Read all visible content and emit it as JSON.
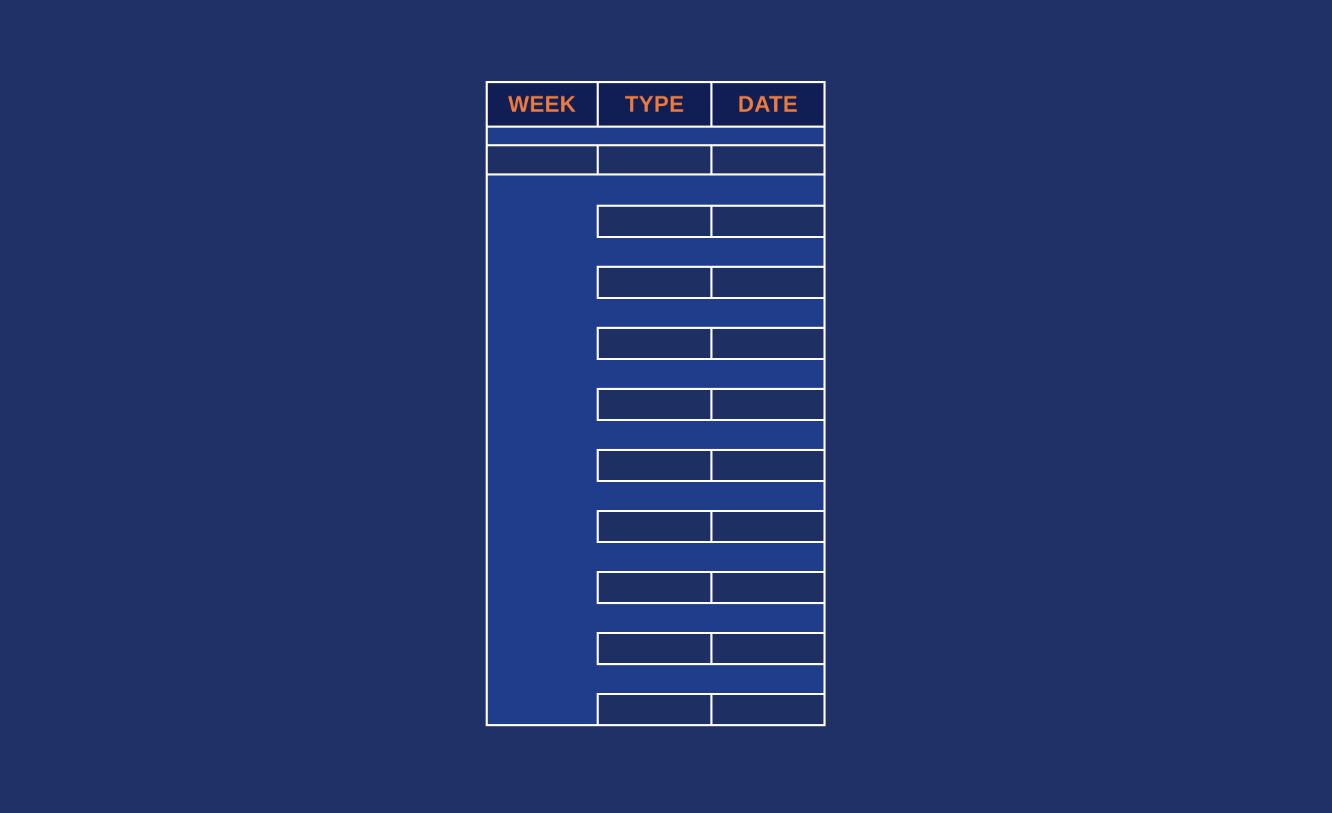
{
  "slide": {
    "background": "#1F3166"
  },
  "schedule_table": {
    "headers": [
      {
        "label": "WEEK"
      },
      {
        "label": "TYPE"
      },
      {
        "label": "DATE"
      }
    ],
    "colors": {
      "header_bg": "#111E55",
      "header_text": "#ED7B3C",
      "accent": "#203D8B",
      "cell_dark": "#1E2F63",
      "border": "#FFFFFF"
    },
    "spacer_row": {
      "value": ""
    },
    "subheader_row": {
      "week": "",
      "type": "",
      "date": ""
    },
    "week_column": {
      "value": ""
    },
    "rows": [
      {
        "type": "",
        "date": ""
      },
      {
        "type": "",
        "date": ""
      },
      {
        "type": "",
        "date": ""
      },
      {
        "type": "",
        "date": ""
      },
      {
        "type": "",
        "date": ""
      },
      {
        "type": "",
        "date": ""
      },
      {
        "type": "",
        "date": ""
      },
      {
        "type": "",
        "date": ""
      },
      {
        "type": "",
        "date": ""
      }
    ]
  }
}
